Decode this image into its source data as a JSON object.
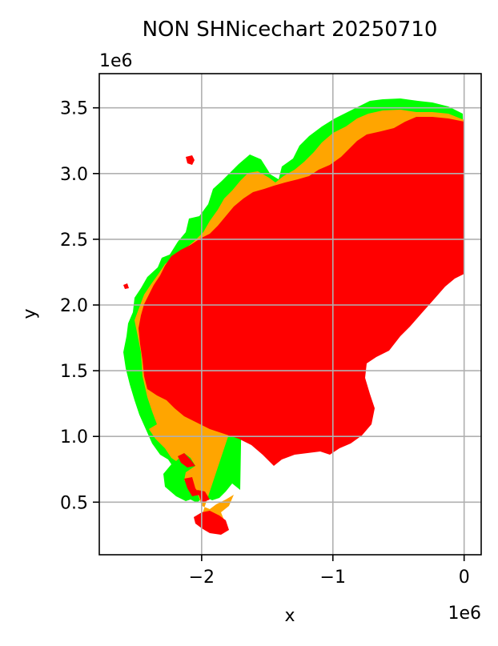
{
  "figure": {
    "title": "NON SHNicechart 20250710",
    "xlabel": "x",
    "ylabel": "y",
    "x_offset_label": "1e6",
    "y_offset_label": "1e6",
    "x_ticks": [
      {
        "value": -2,
        "label": "−2"
      },
      {
        "value": -1,
        "label": "−1"
      },
      {
        "value": 0,
        "label": "0"
      }
    ],
    "y_ticks": [
      {
        "value": 0.5,
        "label": "0.5"
      },
      {
        "value": 1.0,
        "label": "1.0"
      },
      {
        "value": 1.5,
        "label": "1.5"
      },
      {
        "value": 2.0,
        "label": "2.0"
      },
      {
        "value": 2.5,
        "label": "2.5"
      },
      {
        "value": 3.0,
        "label": "3.0"
      },
      {
        "value": 3.5,
        "label": "3.5"
      }
    ],
    "xlim": [
      -2.78,
      0.13
    ],
    "ylim": [
      0.1,
      3.76
    ],
    "grid": true
  },
  "colors": {
    "ice_red": "#ff0000",
    "ice_orange": "#ffa500",
    "ice_green": "#00ff00",
    "grid": "#b0b0b0",
    "axes": "#000000"
  }
}
